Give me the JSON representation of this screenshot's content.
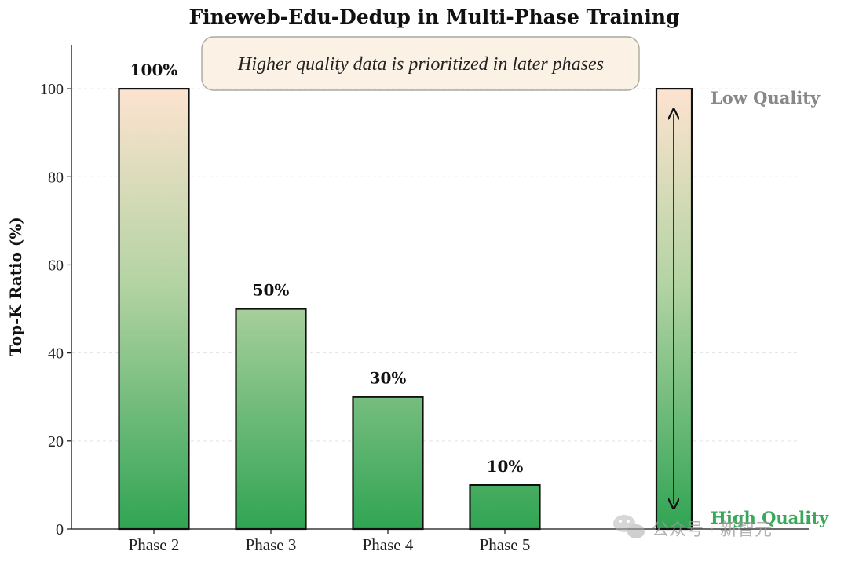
{
  "chart_data": {
    "type": "bar",
    "title": "Fineweb-Edu-Dedup in Multi-Phase Training",
    "xlabel": "",
    "ylabel": "Top-K Ratio (%)",
    "categories": [
      "Phase 2",
      "Phase 3",
      "Phase 4",
      "Phase 5"
    ],
    "values": [
      100,
      50,
      30,
      10
    ],
    "data_labels": [
      "100%",
      "50%",
      "30%",
      "10%"
    ],
    "ylim": [
      0,
      110
    ],
    "yticks": [
      0,
      20,
      40,
      60,
      80,
      100
    ],
    "grid": true,
    "annotation": "Higher quality data is prioritized in later phases",
    "scale_bar": {
      "top_label": "Low Quality",
      "bottom_label": "High Quality",
      "value": 100
    },
    "colors": {
      "bar_top": "#fde3d0",
      "bar_bottom": "#30a453",
      "low_quality": "#888888",
      "high_quality": "#3aa85a",
      "annotation_bg": "#fbf1e4"
    }
  },
  "watermark": {
    "icon": "wechat-icon",
    "text": "公众号 · 新智元"
  }
}
